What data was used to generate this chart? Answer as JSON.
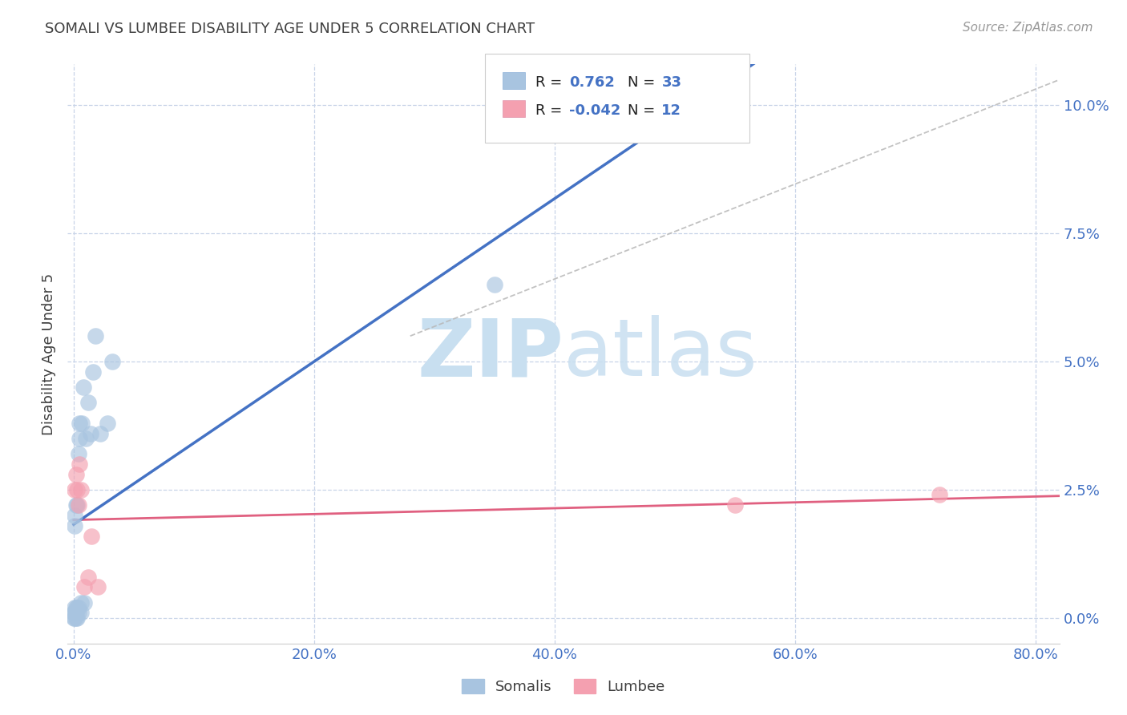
{
  "title": "SOMALI VS LUMBEE DISABILITY AGE UNDER 5 CORRELATION CHART",
  "source": "Source: ZipAtlas.com",
  "ylabel_label": "Disability Age Under 5",
  "xlim": [
    -0.005,
    0.82
  ],
  "ylim": [
    -0.005,
    0.108
  ],
  "somali_R": 0.762,
  "somali_N": 33,
  "lumbee_R": -0.042,
  "lumbee_N": 12,
  "somali_color": "#a8c4e0",
  "lumbee_color": "#f4a0b0",
  "somali_line_color": "#4472c4",
  "lumbee_line_color": "#e06080",
  "diagonal_color": "#b8b8b8",
  "title_color": "#404040",
  "axis_tick_color": "#4472c4",
  "watermark_zip": "ZIP",
  "watermark_atlas": "atlas",
  "watermark_color": "#c8dff0",
  "background_color": "#ffffff",
  "grid_color": "#c8d4e8",
  "somali_x": [
    0.0,
    0.0,
    0.001,
    0.001,
    0.001,
    0.001,
    0.001,
    0.002,
    0.002,
    0.002,
    0.002,
    0.003,
    0.003,
    0.003,
    0.004,
    0.004,
    0.004,
    0.005,
    0.005,
    0.006,
    0.006,
    0.007,
    0.008,
    0.009,
    0.01,
    0.012,
    0.014,
    0.016,
    0.018,
    0.022,
    0.028,
    0.032,
    0.35
  ],
  "somali_y": [
    0.0,
    0.001,
    0.0,
    0.001,
    0.002,
    0.018,
    0.02,
    0.0,
    0.001,
    0.002,
    0.022,
    0.0,
    0.002,
    0.022,
    0.001,
    0.002,
    0.032,
    0.035,
    0.038,
    0.001,
    0.003,
    0.038,
    0.045,
    0.003,
    0.035,
    0.042,
    0.036,
    0.048,
    0.055,
    0.036,
    0.038,
    0.05,
    0.065
  ],
  "lumbee_x": [
    0.001,
    0.002,
    0.003,
    0.004,
    0.005,
    0.006,
    0.009,
    0.012,
    0.015,
    0.02,
    0.55,
    0.72
  ],
  "lumbee_y": [
    0.025,
    0.028,
    0.025,
    0.022,
    0.03,
    0.025,
    0.006,
    0.008,
    0.016,
    0.006,
    0.022,
    0.024
  ],
  "x_tick_vals": [
    0.0,
    0.2,
    0.4,
    0.6,
    0.8
  ],
  "x_tick_labels": [
    "0.0%",
    "20.0%",
    "40.0%",
    "60.0%",
    "80.0%"
  ],
  "y_tick_vals": [
    0.0,
    0.025,
    0.05,
    0.075,
    0.1
  ],
  "y_tick_labels": [
    "0.0%",
    "2.5%",
    "5.0%",
    "7.5%",
    "10.0%"
  ]
}
